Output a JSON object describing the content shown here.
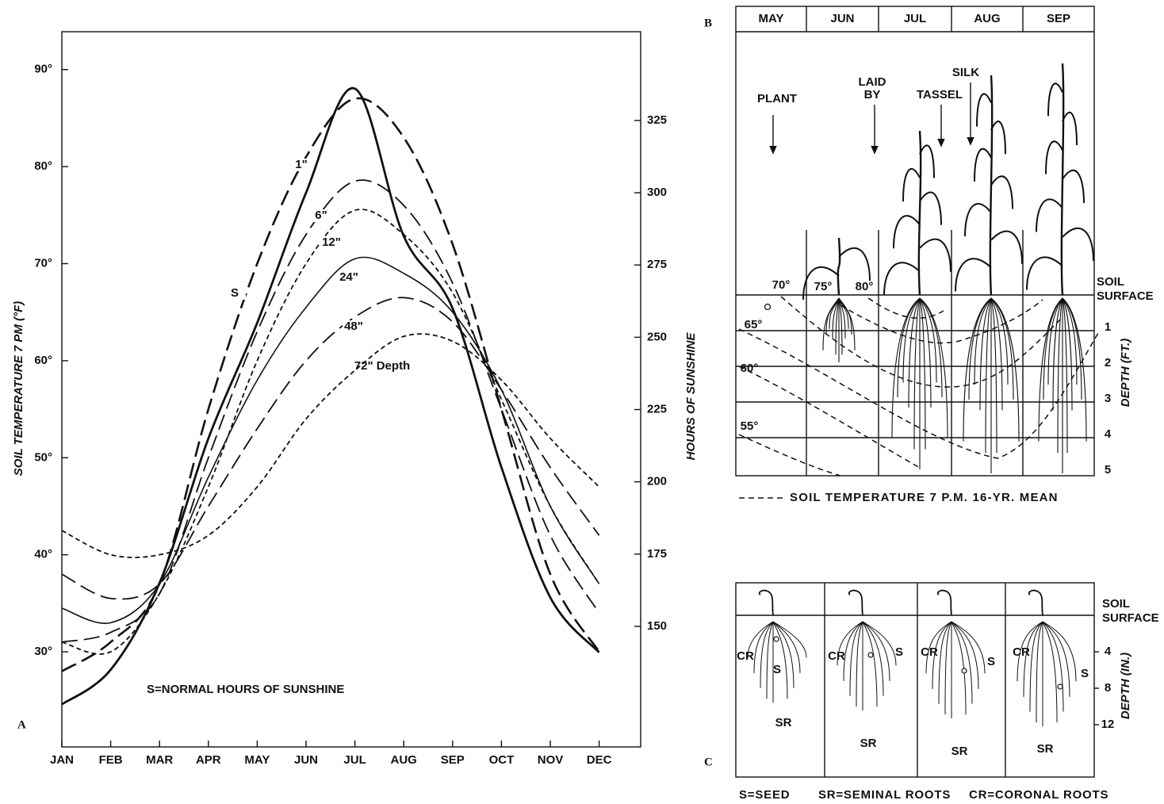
{
  "chart_data": [
    {
      "type": "line",
      "panel_label": "A",
      "y_label": "SOIL TEMPERATURE 7 PM (°F)",
      "y2_label": "HOURS OF SUNSHINE",
      "annotation": "S=NORMAL HOURS OF SUNSHINE",
      "categories": [
        "JAN",
        "FEB",
        "MAR",
        "APR",
        "MAY",
        "JUN",
        "JUL",
        "AUG",
        "SEP",
        "OCT",
        "NOV",
        "DEC"
      ],
      "ylim": [
        20.2,
        93.9
      ],
      "yticks": [
        {
          "value": 30,
          "label": "30°"
        },
        {
          "value": 40,
          "label": "40°"
        },
        {
          "value": 50,
          "label": "50°"
        },
        {
          "value": 60,
          "label": "60°"
        },
        {
          "value": 70,
          "label": "70°"
        },
        {
          "value": 80,
          "label": "80°"
        },
        {
          "value": 90,
          "label": "90°"
        }
      ],
      "y2lim": [
        108.3,
        355.7
      ],
      "y2ticks": [
        150,
        175,
        200,
        225,
        250,
        275,
        300,
        325
      ],
      "series": [
        {
          "name": "1\"",
          "color": "#111111",
          "dash": "dashed",
          "width": 2.6,
          "values": [
            28,
            31,
            37,
            55,
            70,
            81,
            87,
            83,
            72,
            55,
            38,
            30
          ]
        },
        {
          "name": "6\"",
          "color": "#111111",
          "dash": "dashed",
          "width": 1.8,
          "values": [
            31,
            32,
            36,
            50,
            63,
            73,
            78.5,
            76,
            68,
            55,
            42,
            34
          ]
        },
        {
          "name": "12\"",
          "color": "#111111",
          "dash": "dotted",
          "width": 1.8,
          "values": [
            31,
            30,
            36,
            47,
            60,
            70,
            75.5,
            73,
            67,
            56,
            45,
            37
          ]
        },
        {
          "name": "24\"",
          "color": "#111111",
          "dash": "solid",
          "width": 1.6,
          "values": [
            34.5,
            33,
            37,
            48,
            58,
            65.5,
            70.5,
            69,
            65,
            57,
            45,
            37
          ]
        },
        {
          "name": "48\"",
          "color": "#111111",
          "dash": "dashed",
          "width": 1.8,
          "values": [
            38,
            35.5,
            37,
            45,
            53,
            60,
            64.5,
            66.5,
            64,
            57,
            49,
            42
          ]
        },
        {
          "name": "72\" Depth",
          "color": "#111111",
          "dash": "dotted",
          "width": 1.8,
          "values": [
            42.5,
            40,
            40,
            42,
            47,
            54,
            59,
            62.5,
            62,
            58,
            52,
            47
          ]
        },
        {
          "name": "S",
          "color": "#111111",
          "dash": "solid",
          "width": 2.8,
          "axis": "y2",
          "values": [
            123,
            135,
            165,
            215,
            255,
            300,
            336,
            285,
            260,
            205,
            160,
            141
          ]
        }
      ]
    }
  ],
  "panel_b": {
    "label": "B",
    "months": [
      "MAY",
      "JUN",
      "JUL",
      "AUG",
      "SEP"
    ],
    "plant": [
      "PLANT"
    ],
    "laid_by": [
      "LAID",
      "BY"
    ],
    "tassel": [
      "TASSEL"
    ],
    "silk": [
      "SILK"
    ],
    "isotherms": [
      "70°",
      "75°",
      "80°",
      "65°",
      "60°",
      "55°"
    ],
    "soil_surface": [
      "SOIL",
      "SURFACE"
    ],
    "depth_label": "DEPTH (FT.)",
    "depth_ticks": [
      1,
      2,
      3,
      4,
      5
    ],
    "legend": "SOIL TEMPERATURE 7 P.M. 16-YR. MEAN"
  },
  "panel_c": {
    "label": "C",
    "soil_surface": [
      "SOIL",
      "SURFACE"
    ],
    "depth_label": "DEPTH (IN.)",
    "depth_ticks": [
      4,
      8,
      12
    ],
    "root_labels": [
      {
        "cr": "CR",
        "s": "S",
        "sr": "SR"
      },
      {
        "cr": "CR",
        "s": "S",
        "sr": "SR"
      },
      {
        "cr": "CR",
        "s": "S",
        "sr": "SR"
      },
      {
        "cr": "CR",
        "s": "S",
        "sr": "SR"
      }
    ],
    "legend": [
      "S=SEED",
      "SR=SEMINAL ROOTS",
      "CR=CORONAL ROOTS"
    ]
  }
}
